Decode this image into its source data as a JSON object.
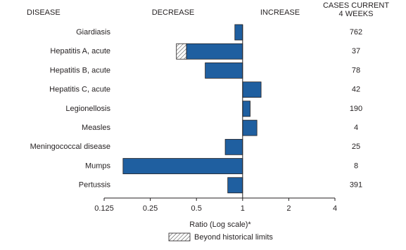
{
  "chart_data": {
    "type": "bar",
    "orientation": "horizontal",
    "log_scale": true,
    "log_base": 2,
    "header_disease": "DISEASE",
    "header_decrease": "DECREASE",
    "header_increase": "INCREASE",
    "header_cases": [
      "CASES CURRENT",
      "4 WEEKS"
    ],
    "categories": [
      "Giardiasis",
      "Hepatitis A, acute",
      "Hepatitis B, acute",
      "Hepatitis C, acute",
      "Legionellosis",
      "Measles",
      "Meningococcal disease",
      "Mumps",
      "Pertussis"
    ],
    "series": [
      {
        "name": "Ratio",
        "color": "#1f5fa0",
        "values": [
          0.89,
          0.37,
          0.57,
          1.32,
          1.12,
          1.24,
          0.77,
          0.166,
          0.8
        ],
        "historical_limits": [
          null,
          0.43,
          null,
          null,
          null,
          null,
          null,
          null,
          null
        ]
      }
    ],
    "cases": [
      762,
      37,
      78,
      42,
      190,
      4,
      25,
      8,
      391
    ],
    "baseline": 1,
    "xlim": [
      0.125,
      4
    ],
    "xticks": [
      0.125,
      0.25,
      0.5,
      1,
      2,
      4
    ],
    "x_label": "Ratio (Log scale)*",
    "legend": "Beyond historical limits"
  }
}
